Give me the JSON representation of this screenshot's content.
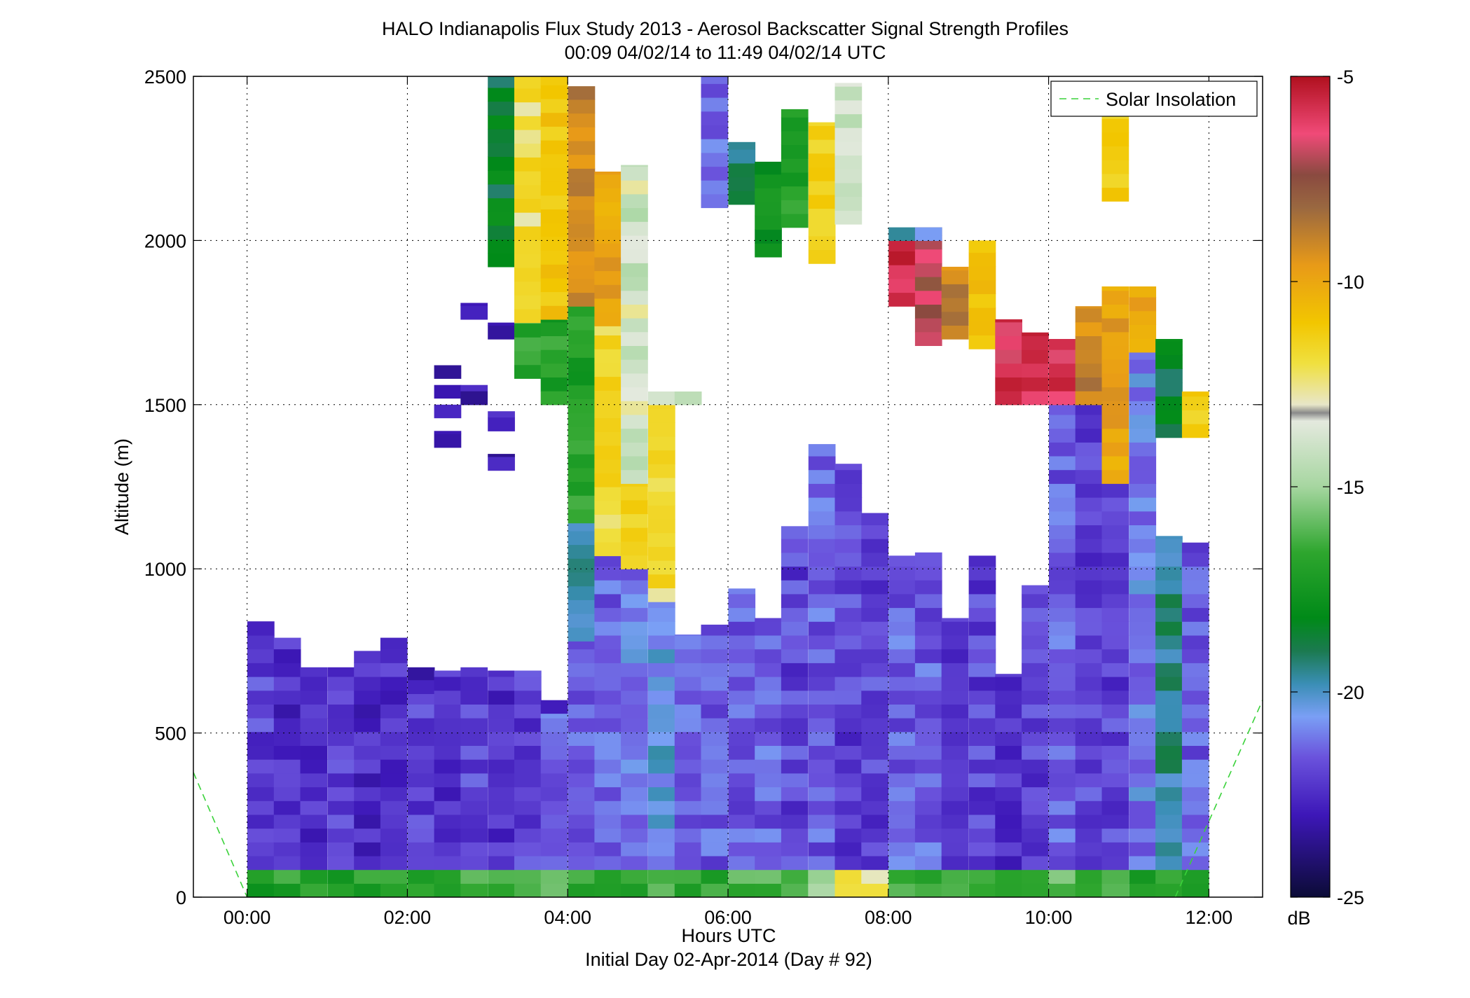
{
  "figure": {
    "title_line1": "HALO Indianapolis Flux Study 2013 - Aerosol Backscatter Signal Strength Profiles",
    "title_line2": "00:09 04/02/14 to 11:49 04/02/14  UTC",
    "xlabel": "Hours UTC",
    "xlabel2": "Initial Day 02-Apr-2014 (Day # 92)",
    "ylabel": "Altitude (m)",
    "colorbar_label": "dB",
    "legend_label": "Solar Insolation"
  },
  "chart_data": {
    "type": "heatmap",
    "title": "HALO Indianapolis Flux Study 2013 - Aerosol Backscatter Signal Strength Profiles",
    "subtitle": "00:09 04/02/14 to 11:49 04/02/14  UTC",
    "xlabel": "Hours UTC",
    "ylabel": "Altitude (m)",
    "x_units": "hours UTC",
    "xlim": [
      -0.67,
      12.67
    ],
    "ylim": [
      0,
      2500
    ],
    "x_ticks": [
      0,
      2,
      4,
      6,
      8,
      10,
      12
    ],
    "x_tick_labels": [
      "00:00",
      "02:00",
      "04:00",
      "06:00",
      "08:00",
      "10:00",
      "12:00"
    ],
    "y_ticks": [
      0,
      500,
      1000,
      1500,
      2000,
      2500
    ],
    "y_tick_labels": [
      "0",
      "500",
      "1000",
      "1500",
      "2000",
      "2500"
    ],
    "grid": true,
    "colorbar": {
      "label": "dB",
      "min": -25,
      "max": -5,
      "ticks": [
        -25,
        -20,
        -15,
        -10,
        -5
      ],
      "tick_labels": [
        "-25",
        "-20",
        "-15",
        "-10",
        "-5"
      ]
    },
    "legend": {
      "entries": [
        "Solar Insolation"
      ],
      "placement": "top-right",
      "style": "green dashed"
    },
    "time_step_hours": 0.333,
    "altitude_step_m": 42,
    "columns": [
      {
        "t": 0.17,
        "layers": [
          [
            0,
            84,
            -17
          ],
          [
            84,
            840,
            -22
          ]
        ]
      },
      {
        "t": 0.5,
        "layers": [
          [
            0,
            84,
            -17
          ],
          [
            84,
            790,
            -22.5
          ]
        ]
      },
      {
        "t": 0.83,
        "layers": [
          [
            0,
            84,
            -17
          ],
          [
            84,
            700,
            -22.5
          ]
        ]
      },
      {
        "t": 1.17,
        "layers": [
          [
            0,
            84,
            -17
          ],
          [
            84,
            700,
            -22
          ]
        ]
      },
      {
        "t": 1.5,
        "layers": [
          [
            0,
            84,
            -17
          ],
          [
            84,
            750,
            -22.5
          ]
        ]
      },
      {
        "t": 1.83,
        "layers": [
          [
            0,
            84,
            -17
          ],
          [
            84,
            790,
            -22.5
          ]
        ]
      },
      {
        "t": 2.17,
        "layers": [
          [
            0,
            84,
            -16.5
          ],
          [
            84,
            620,
            -22
          ],
          [
            620,
            700,
            -23
          ]
        ]
      },
      {
        "t": 2.5,
        "layers": [
          [
            0,
            84,
            -16.5
          ],
          [
            84,
            690,
            -22.5
          ],
          [
            1370,
            1420,
            -23
          ],
          [
            1460,
            1500,
            -23
          ],
          [
            1520,
            1560,
            -23
          ],
          [
            1580,
            1620,
            -23
          ]
        ]
      },
      {
        "t": 2.83,
        "layers": [
          [
            0,
            84,
            -16.5
          ],
          [
            84,
            700,
            -22
          ],
          [
            1500,
            1560,
            -23
          ],
          [
            1760,
            1810,
            -23
          ]
        ]
      },
      {
        "t": 3.17,
        "layers": [
          [
            0,
            84,
            -16
          ],
          [
            84,
            690,
            -22.5
          ],
          [
            1300,
            1350,
            -23
          ],
          [
            1420,
            1480,
            -23
          ],
          [
            1700,
            1750,
            -23
          ],
          [
            1920,
            2500,
            -18.5
          ]
        ]
      },
      {
        "t": 3.5,
        "layers": [
          [
            0,
            84,
            -16
          ],
          [
            84,
            690,
            -22
          ],
          [
            1580,
            1750,
            -16.5
          ],
          [
            1750,
            2500,
            -12.5
          ]
        ]
      },
      {
        "t": 3.83,
        "layers": [
          [
            0,
            84,
            -16
          ],
          [
            84,
            560,
            -21.5
          ],
          [
            560,
            600,
            -23
          ],
          [
            1500,
            1760,
            -17
          ],
          [
            1760,
            2500,
            -11.5
          ]
        ]
      },
      {
        "t": 4.17,
        "layers": [
          [
            0,
            84,
            -16.5
          ],
          [
            84,
            780,
            -21.5
          ],
          [
            780,
            1140,
            -19.5
          ],
          [
            1140,
            1800,
            -17
          ],
          [
            1800,
            2470,
            -9
          ]
        ]
      },
      {
        "t": 4.5,
        "layers": [
          [
            0,
            84,
            -16.5
          ],
          [
            84,
            1040,
            -21.5
          ],
          [
            1040,
            1740,
            -12.5
          ],
          [
            1740,
            2210,
            -10
          ]
        ]
      },
      {
        "t": 4.83,
        "layers": [
          [
            0,
            84,
            -16.5
          ],
          [
            84,
            1000,
            -21
          ],
          [
            1000,
            1260,
            -12
          ],
          [
            1260,
            2230,
            -14
          ]
        ]
      },
      {
        "t": 5.17,
        "layers": [
          [
            0,
            84,
            -16.5
          ],
          [
            84,
            900,
            -20.5
          ],
          [
            900,
            1500,
            -12.5
          ],
          [
            1500,
            1540,
            -14.5
          ]
        ]
      },
      {
        "t": 5.5,
        "layers": [
          [
            0,
            84,
            -16.5
          ],
          [
            84,
            800,
            -21.5
          ],
          [
            1500,
            1540,
            -14.5
          ]
        ]
      },
      {
        "t": 5.83,
        "layers": [
          [
            0,
            84,
            -17
          ],
          [
            84,
            830,
            -21.5
          ],
          [
            2100,
            2500,
            -21.5
          ]
        ]
      },
      {
        "t": 6.17,
        "layers": [
          [
            0,
            84,
            -16.5
          ],
          [
            84,
            940,
            -21.5
          ],
          [
            2110,
            2300,
            -19.5
          ]
        ]
      },
      {
        "t": 6.5,
        "layers": [
          [
            0,
            84,
            -16
          ],
          [
            84,
            850,
            -21.5
          ],
          [
            1950,
            2240,
            -18
          ]
        ]
      },
      {
        "t": 6.83,
        "layers": [
          [
            0,
            84,
            -16
          ],
          [
            84,
            1130,
            -22
          ],
          [
            2040,
            2400,
            -17
          ]
        ]
      },
      {
        "t": 7.17,
        "layers": [
          [
            0,
            84,
            -15.5
          ],
          [
            84,
            1380,
            -21.5
          ],
          [
            1930,
            2360,
            -12
          ]
        ]
      },
      {
        "t": 7.5,
        "layers": [
          [
            0,
            84,
            -13
          ],
          [
            84,
            1320,
            -22
          ],
          [
            2050,
            2480,
            -14
          ]
        ]
      },
      {
        "t": 7.83,
        "layers": [
          [
            0,
            84,
            -13
          ],
          [
            84,
            1170,
            -22
          ]
        ]
      },
      {
        "t": 8.17,
        "layers": [
          [
            0,
            84,
            -16
          ],
          [
            84,
            1040,
            -21.5
          ],
          [
            1800,
            2000,
            -5.5
          ],
          [
            2000,
            2040,
            -20
          ]
        ]
      },
      {
        "t": 8.5,
        "layers": [
          [
            0,
            84,
            -16.5
          ],
          [
            84,
            1050,
            -21.5
          ],
          [
            1680,
            2040,
            -7
          ],
          [
            2000,
            2040,
            -20
          ]
        ]
      },
      {
        "t": 8.83,
        "layers": [
          [
            0,
            84,
            -16.5
          ],
          [
            84,
            850,
            -22
          ],
          [
            1700,
            1920,
            -9
          ]
        ]
      },
      {
        "t": 9.17,
        "layers": [
          [
            0,
            84,
            -16
          ],
          [
            84,
            1040,
            -22
          ],
          [
            1670,
            2000,
            -11
          ]
        ]
      },
      {
        "t": 9.5,
        "layers": [
          [
            0,
            84,
            -16.5
          ],
          [
            84,
            680,
            -22.5
          ],
          [
            1500,
            1760,
            -6
          ]
        ]
      },
      {
        "t": 9.83,
        "layers": [
          [
            0,
            84,
            -16.5
          ],
          [
            84,
            950,
            -22
          ],
          [
            1500,
            1720,
            -6
          ]
        ]
      },
      {
        "t": 10.17,
        "layers": [
          [
            0,
            84,
            -16
          ],
          [
            84,
            1500,
            -21.5
          ],
          [
            1500,
            1700,
            -6
          ]
        ]
      },
      {
        "t": 10.5,
        "layers": [
          [
            0,
            84,
            -16
          ],
          [
            84,
            1500,
            -22
          ],
          [
            1500,
            1800,
            -9
          ]
        ]
      },
      {
        "t": 10.83,
        "layers": [
          [
            0,
            84,
            -16
          ],
          [
            84,
            1260,
            -22
          ],
          [
            1260,
            1860,
            -10
          ],
          [
            2120,
            2480,
            -12
          ]
        ]
      },
      {
        "t": 11.17,
        "layers": [
          [
            0,
            84,
            -17
          ],
          [
            84,
            1660,
            -21
          ],
          [
            1660,
            1860,
            -10
          ]
        ]
      },
      {
        "t": 11.5,
        "layers": [
          [
            0,
            84,
            -17
          ],
          [
            84,
            1100,
            -19.5
          ],
          [
            1400,
            1700,
            -18.5
          ]
        ]
      },
      {
        "t": 11.83,
        "layers": [
          [
            0,
            84,
            -17
          ],
          [
            84,
            1080,
            -21.5
          ],
          [
            1400,
            1540,
            -12
          ]
        ]
      }
    ],
    "solar_insolation": {
      "style": "dashed green",
      "left_end_hour": 0.0,
      "right_start_hour": 11.58
    }
  }
}
